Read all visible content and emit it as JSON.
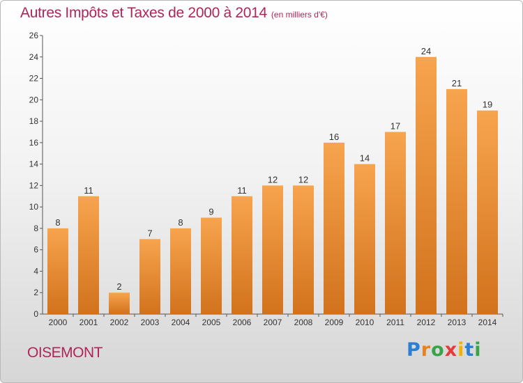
{
  "title": "Autres Impôts et Taxes de 2000 à 2014",
  "subtitle": "(en milliers d'€)",
  "commune": "OISEMONT",
  "logo": [
    "P",
    "r",
    "o",
    "x",
    "i",
    "t",
    "i"
  ],
  "colors": {
    "title": "#b0245a",
    "bar_top": "#f7a44e",
    "bar_bottom": "#d2721d",
    "axis": "#555555"
  },
  "chart_data": {
    "type": "bar",
    "categories": [
      "2000",
      "2001",
      "2002",
      "2003",
      "2004",
      "2005",
      "2006",
      "2007",
      "2008",
      "2009",
      "2010",
      "2011",
      "2012",
      "2013",
      "2014"
    ],
    "values": [
      8,
      11,
      2,
      7,
      8,
      9,
      11,
      12,
      12,
      16,
      14,
      17,
      24,
      21,
      19
    ],
    "title": "Autres Impôts et Taxes de 2000 à 2014",
    "subtitle": "(en milliers d'€)",
    "ylim": [
      0,
      26
    ],
    "yticks": [
      0,
      2,
      4,
      6,
      8,
      10,
      12,
      14,
      16,
      18,
      20,
      22,
      24,
      26
    ],
    "grid": false,
    "data_labels": true
  }
}
